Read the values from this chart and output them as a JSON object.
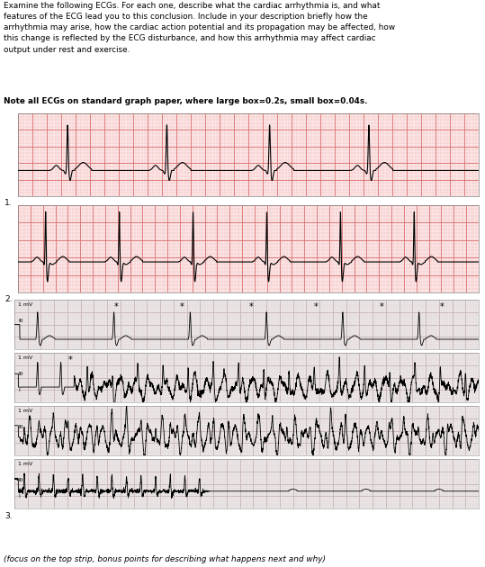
{
  "title_text": "Examine the following ECGs. For each one, describe what the cardiac arrhythmia is, and what\nfeatures of the ECG lead you to this conclusion. Include in your description briefly how the\narrhythmia may arise, how the cardiac action potential and its propagation may be affected, how\nthis change is reflected by the ECG disturbance, and how this arrhythmia may affect cardiac\noutput under rest and exercise.",
  "note_text": "Note all ECGs on standard graph paper, where large box=0.2s, small box=0.04s.",
  "footer_text": "(focus on the top strip, bonus points for describing what happens next and why)",
  "bg_color": "#ffffff",
  "ecg1_bg": "#fde8e8",
  "ecg2_bg": "#fde8e8",
  "ecg3_bg": "#ede8e8",
  "grid_major_color": "#d97070",
  "grid_minor_color": "#f0b8b8",
  "grid3_major_color": "#c8b4b4",
  "grid3_minor_color": "#ddd0d0",
  "label1": "1.",
  "label2": "2.",
  "label3": "3."
}
